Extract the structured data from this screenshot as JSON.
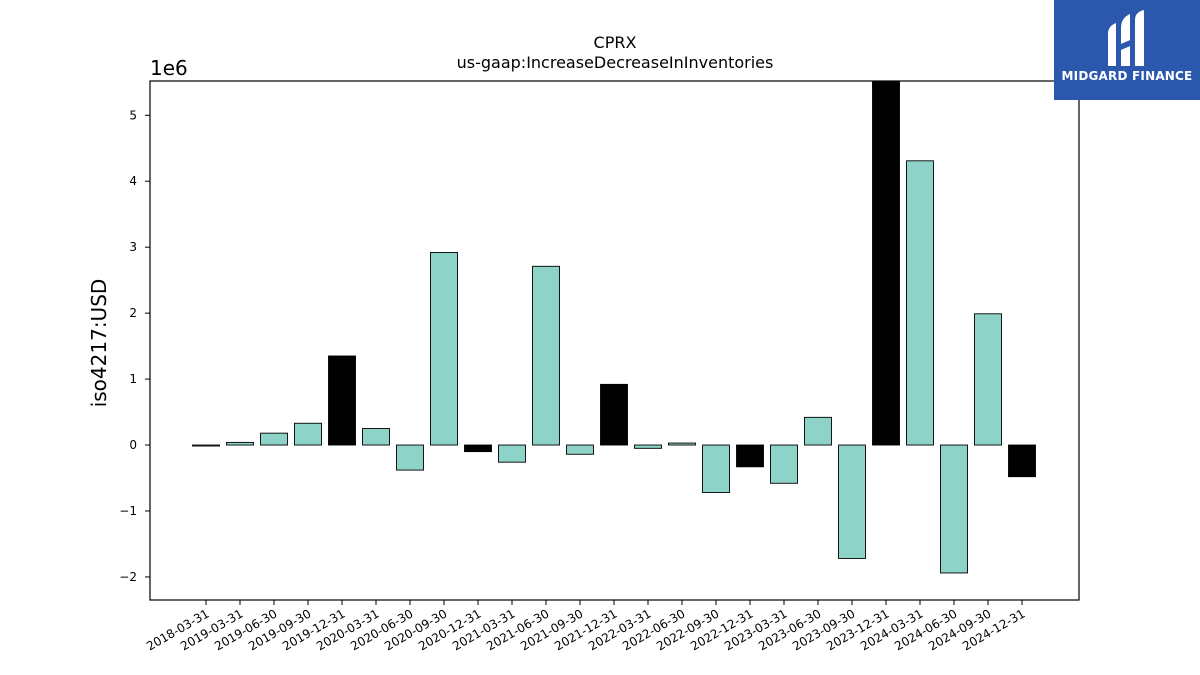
{
  "chart_data": {
    "type": "bar",
    "title": "CPRX",
    "subtitle": "us-gaap:IncreaseDecreaseInInventories",
    "ylabel": "iso4217:USD",
    "y_offset_label": "1e6",
    "ylim": [
      -2.35,
      5.52
    ],
    "yticks": [
      -2,
      -1,
      0,
      1,
      2,
      3,
      4,
      5
    ],
    "ytick_labels": [
      "−2",
      "−1",
      "0",
      "1",
      "2",
      "3",
      "4",
      "5"
    ],
    "categories": [
      "2018-03-31",
      "2019-03-31",
      "2019-06-30",
      "2019-09-30",
      "2019-12-31",
      "2020-03-31",
      "2020-06-30",
      "2020-09-30",
      "2020-12-31",
      "2021-03-31",
      "2021-06-30",
      "2021-09-30",
      "2021-12-31",
      "2022-03-31",
      "2022-06-30",
      "2022-09-30",
      "2022-12-31",
      "2023-03-31",
      "2023-06-30",
      "2023-09-30",
      "2023-12-31",
      "2024-03-31",
      "2024-06-30",
      "2024-09-30",
      "2024-12-31"
    ],
    "values": [
      -0.01,
      0.04,
      0.18,
      0.33,
      1.35,
      0.25,
      -0.38,
      2.92,
      -0.1,
      -0.26,
      2.71,
      -0.14,
      0.92,
      -0.05,
      0.03,
      -0.72,
      -0.33,
      -0.58,
      0.42,
      -1.72,
      5.56,
      4.31,
      -1.94,
      1.99,
      -0.48
    ],
    "bar_colors": [
      "#8dd3c7",
      "#8dd3c7",
      "#8dd3c7",
      "#8dd3c7",
      "#000000",
      "#8dd3c7",
      "#8dd3c7",
      "#8dd3c7",
      "#000000",
      "#8dd3c7",
      "#8dd3c7",
      "#8dd3c7",
      "#000000",
      "#8dd3c7",
      "#8dd3c7",
      "#8dd3c7",
      "#000000",
      "#8dd3c7",
      "#8dd3c7",
      "#8dd3c7",
      "#000000",
      "#8dd3c7",
      "#8dd3c7",
      "#8dd3c7",
      "#000000"
    ],
    "grid": false
  },
  "logo": {
    "text": "MIDGARD FINANCE",
    "color": "#2b58ad",
    "icon": "midgard-logo-icon"
  }
}
